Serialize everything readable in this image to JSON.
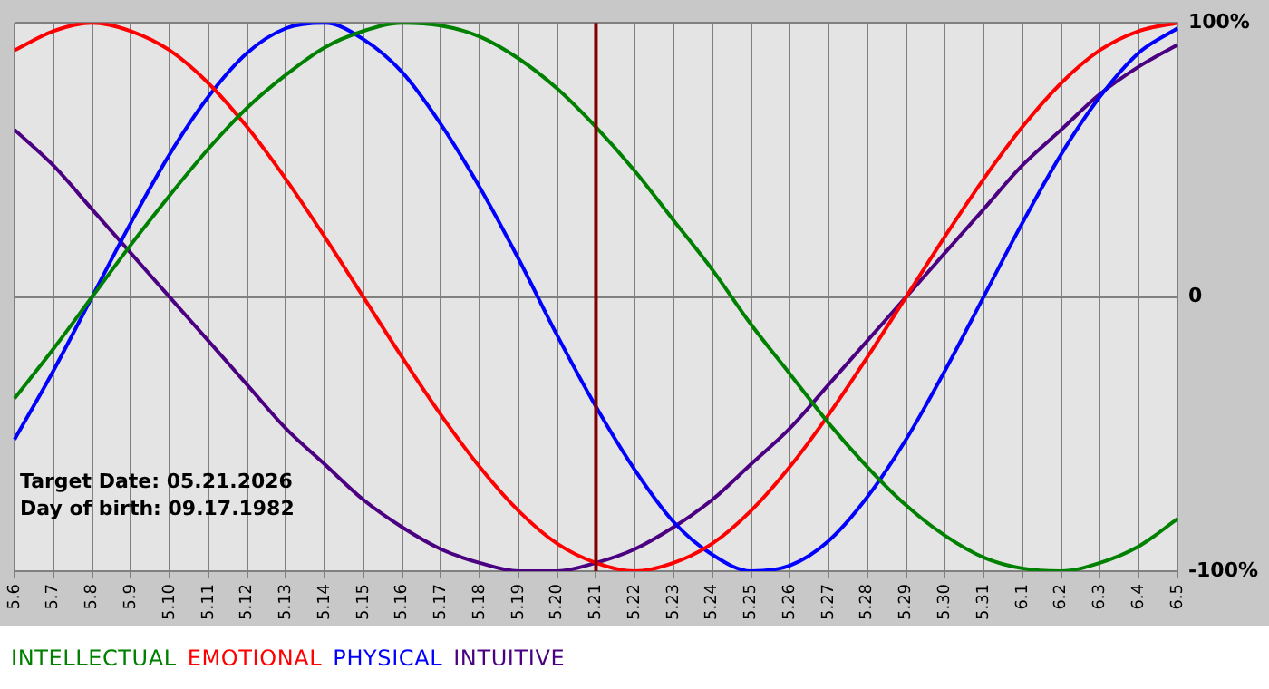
{
  "chart_data": {
    "type": "line",
    "categories": [
      "5.6",
      "5.7",
      "5.8",
      "5.9",
      "5.10",
      "5.11",
      "5.12",
      "5.13",
      "5.14",
      "5.15",
      "5.16",
      "5.17",
      "5.18",
      "5.19",
      "5.20",
      "5.21",
      "5.22",
      "5.23",
      "5.24",
      "5.25",
      "5.26",
      "5.27",
      "5.28",
      "5.29",
      "5.30",
      "5.31",
      "6.1",
      "6.2",
      "6.3",
      "6.4",
      "6.5"
    ],
    "series": [
      {
        "name": "INTELLECTUAL",
        "color": "#008000",
        "values": [
          -37,
          -19,
          0,
          19,
          37,
          54,
          69,
          81,
          91,
          97,
          100,
          99,
          95,
          87,
          76,
          62,
          46,
          28,
          10,
          -10,
          -28,
          -46,
          -62,
          -76,
          -87,
          -95,
          -99,
          -100,
          -97,
          -91,
          -81
        ]
      },
      {
        "name": "EMOTIONAL",
        "color": "#ff0000",
        "values": [
          90,
          97,
          100,
          97,
          90,
          78,
          62,
          43,
          22,
          0,
          -22,
          -43,
          -62,
          -78,
          -90,
          -97,
          -100,
          -97,
          -90,
          -78,
          -62,
          -43,
          -22,
          0,
          22,
          43,
          62,
          78,
          90,
          97,
          100
        ]
      },
      {
        "name": "PHYSICAL",
        "color": "#0000ff",
        "values": [
          -52,
          -27,
          0,
          27,
          52,
          73,
          89,
          98,
          100,
          94,
          82,
          63,
          40,
          14,
          -14,
          -40,
          -63,
          -82,
          -94,
          -100,
          -98,
          -89,
          -73,
          -52,
          -27,
          0,
          27,
          52,
          73,
          89,
          98
        ]
      },
      {
        "name": "INTUITIVE",
        "color": "#4b0082",
        "values": [
          61,
          48,
          32,
          16,
          0,
          -16,
          -32,
          -48,
          -61,
          -74,
          -84,
          -92,
          -97,
          -100,
          -100,
          -97,
          -92,
          -84,
          -74,
          -61,
          -48,
          -32,
          -16,
          0,
          16,
          32,
          48,
          61,
          74,
          84,
          92
        ]
      }
    ],
    "ylim": [
      -100,
      100
    ],
    "yticks": [
      {
        "value": 100,
        "label": "100%"
      },
      0,
      {
        "value": -100,
        "label": "-100%"
      }
    ],
    "ref_lines": [
      {
        "axis": "x",
        "value": "5.21",
        "color": "#800000"
      }
    ],
    "annotations": [
      "Target Date: 05.21.2026",
      "Day of birth: 09.17.1982"
    ],
    "grid": true,
    "legend": "bottom",
    "marker": "none",
    "line_style": "solid"
  }
}
